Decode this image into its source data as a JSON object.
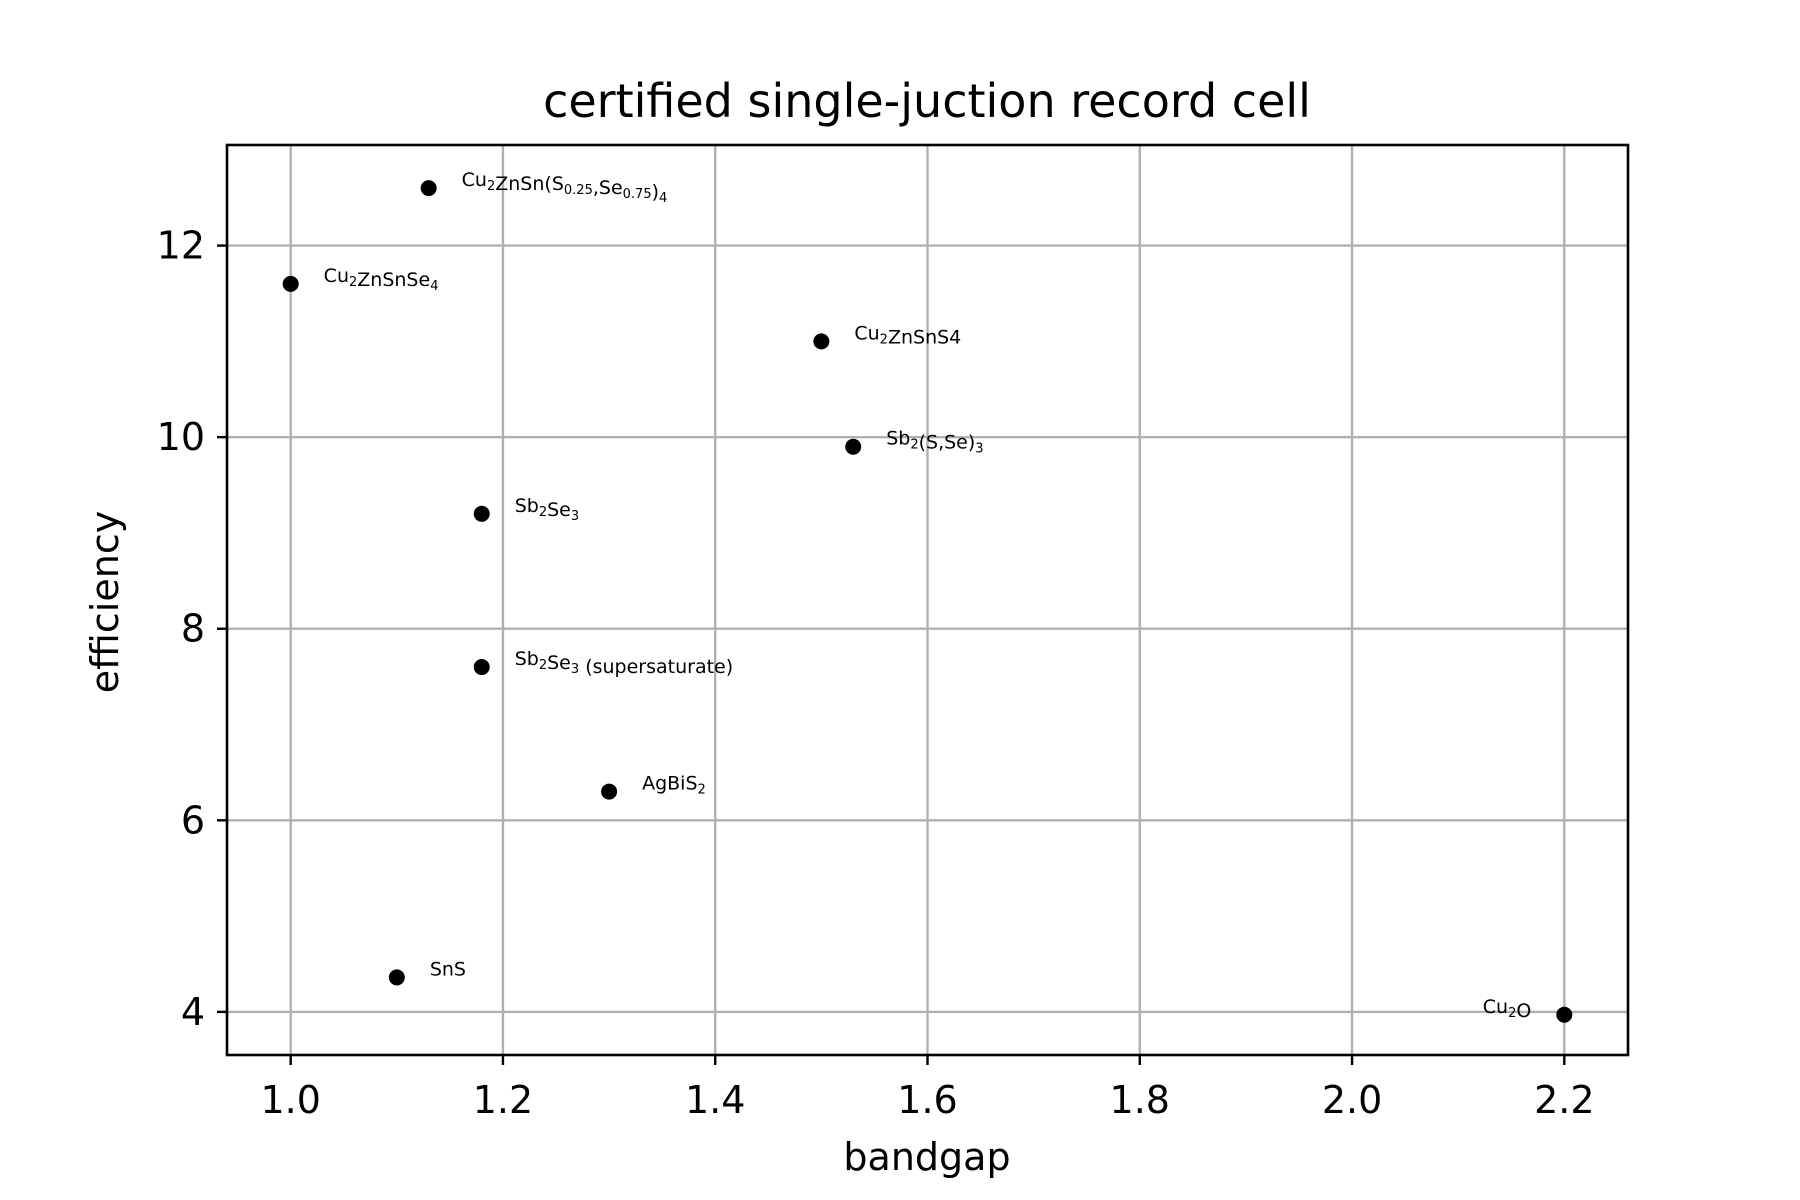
{
  "chart_data": {
    "type": "scatter",
    "title": "certified single-juction record cell",
    "xlabel": "bandgap",
    "ylabel": "efficiency",
    "xlim": [
      0.94,
      2.26
    ],
    "ylim": [
      3.55,
      13.05
    ],
    "xticks": [
      1.0,
      1.2,
      1.4,
      1.6,
      1.8,
      2.0,
      2.2
    ],
    "xtick_labels": [
      "1.0",
      "1.2",
      "1.4",
      "1.6",
      "1.8",
      "2.0",
      "2.2"
    ],
    "yticks": [
      4,
      6,
      8,
      10,
      12
    ],
    "ytick_labels": [
      "4",
      "6",
      "8",
      "10",
      "12"
    ],
    "grid": true,
    "points": [
      {
        "label": "Cu2ZnSn(S0.25,Se0.75)4",
        "label_parts": [
          [
            "Cu",
            ""
          ],
          [
            "2",
            "sub"
          ],
          [
            "ZnSn(S",
            ""
          ],
          [
            "0.25",
            "sub"
          ],
          [
            ",Se",
            ""
          ],
          [
            "0.75",
            "sub"
          ],
          [
            ")",
            ""
          ],
          [
            "4",
            "sub"
          ]
        ],
        "x": 1.13,
        "y": 12.6,
        "label_side": "right"
      },
      {
        "label": "Cu2ZnSnSe4",
        "label_parts": [
          [
            "Cu",
            ""
          ],
          [
            "2",
            "sub"
          ],
          [
            "ZnSnSe",
            ""
          ],
          [
            "4",
            "sub"
          ]
        ],
        "x": 1.0,
        "y": 11.6,
        "label_side": "right"
      },
      {
        "label": "Cu2ZnSnS4",
        "label_parts": [
          [
            "Cu",
            ""
          ],
          [
            "2",
            "sub"
          ],
          [
            "ZnSnS4",
            ""
          ]
        ],
        "x": 1.5,
        "y": 11.0,
        "label_side": "right"
      },
      {
        "label": "Sb2(S,Se)3",
        "label_parts": [
          [
            "Sb",
            ""
          ],
          [
            "2",
            "sub"
          ],
          [
            "(S,Se)",
            ""
          ],
          [
            "3",
            "sub"
          ]
        ],
        "x": 1.53,
        "y": 9.9,
        "label_side": "right"
      },
      {
        "label": "Sb2Se3",
        "label_parts": [
          [
            "Sb",
            ""
          ],
          [
            "2",
            "sub"
          ],
          [
            "Se",
            ""
          ],
          [
            "3",
            "sub"
          ]
        ],
        "x": 1.18,
        "y": 9.2,
        "label_side": "right"
      },
      {
        "label": "Sb2Se3 (supersaturate)",
        "label_parts": [
          [
            "Sb",
            ""
          ],
          [
            "2",
            "sub"
          ],
          [
            "Se",
            ""
          ],
          [
            "3",
            "sub"
          ],
          [
            " (supersaturate)",
            ""
          ]
        ],
        "x": 1.18,
        "y": 7.6,
        "label_side": "right"
      },
      {
        "label": "AgBiS2",
        "label_parts": [
          [
            "AgBiS",
            ""
          ],
          [
            "2",
            "sub"
          ]
        ],
        "x": 1.3,
        "y": 6.3,
        "label_side": "right"
      },
      {
        "label": "SnS",
        "label_parts": [
          [
            "SnS",
            ""
          ]
        ],
        "x": 1.1,
        "y": 4.36,
        "label_side": "right"
      },
      {
        "label": "Cu2O",
        "label_parts": [
          [
            "Cu",
            ""
          ],
          [
            "2",
            "sub"
          ],
          [
            "O",
            ""
          ]
        ],
        "x": 2.2,
        "y": 3.97,
        "label_side": "left"
      }
    ],
    "marker_color": "#000000",
    "grid_color": "#b0b0b0"
  }
}
